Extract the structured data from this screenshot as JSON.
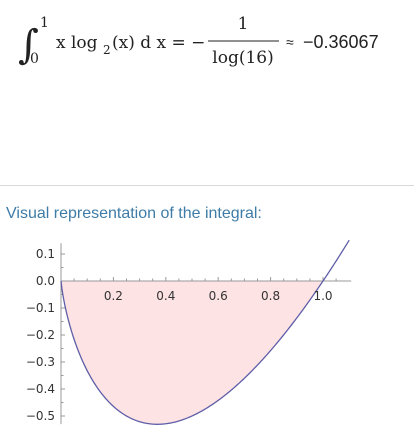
{
  "formula": {
    "integral_sign": "∫",
    "upper_limit": "1",
    "lower_limit": "0",
    "integrand_prefix": "x log",
    "log_base": "2",
    "integrand_suffix": "(x) d x = −",
    "numerator": "1",
    "denominator": "log(16)",
    "approx_symbol": "≈",
    "approx_value": "−0.36067"
  },
  "section": {
    "title": "Visual representation of the integral:"
  },
  "colors": {
    "title": "#3e7ca7",
    "curve": "#5e5ea8",
    "fill": "#fde3e3",
    "axis": "#999999",
    "divider": "#d9d9d9"
  },
  "chart_data": {
    "type": "area",
    "title": "",
    "xlabel": "",
    "ylabel": "",
    "x_ticks": [
      0.2,
      0.4,
      0.6,
      0.8,
      1.0
    ],
    "x_tick_labels": [
      "0.2",
      "0.4",
      "0.6",
      "0.8",
      "1.0"
    ],
    "y_ticks": [
      0.1,
      0.0,
      -0.1,
      -0.2,
      -0.3,
      -0.4,
      -0.5
    ],
    "y_tick_labels": [
      "0.1",
      "0.0",
      "−0.1",
      "−0.2",
      "−0.3",
      "−0.4",
      "−0.5"
    ],
    "xlim": [
      0,
      1.1
    ],
    "ylim": [
      -0.53,
      0.14
    ],
    "shaded_interval": [
      0,
      1
    ],
    "series": [
      {
        "x": [
          0.0,
          0.02,
          0.05,
          0.1,
          0.15,
          0.2,
          0.25,
          0.3,
          0.3679,
          0.45,
          0.5,
          0.6,
          0.7,
          0.8,
          0.9,
          1.0,
          1.05,
          1.1
        ],
        "y": [
          0.0,
          -0.113,
          -0.216,
          -0.332,
          -0.411,
          -0.464,
          -0.5,
          -0.521,
          -0.531,
          -0.518,
          -0.5,
          -0.442,
          -0.36,
          -0.258,
          -0.137,
          0.0,
          0.074,
          0.151
        ]
      }
    ]
  }
}
